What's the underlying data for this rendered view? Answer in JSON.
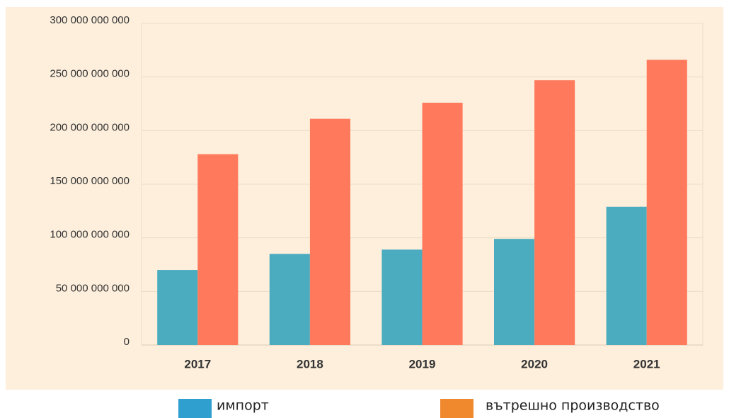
{
  "chart_data": {
    "type": "bar",
    "categories": [
      "2017",
      "2018",
      "2019",
      "2020",
      "2021"
    ],
    "series": [
      {
        "name": "импорт",
        "color": "#4bacc0",
        "legend_color": "#2f9fcf",
        "values": [
          70000000000,
          85000000000,
          89000000000,
          99000000000,
          129000000000
        ]
      },
      {
        "name": "вътрешно производство",
        "color": "#ff7a5c",
        "legend_color": "#f0882e",
        "values": [
          178000000000,
          211000000000,
          226000000000,
          247000000000,
          266000000000
        ]
      }
    ],
    "ylim": [
      0,
      300000000000
    ],
    "yticks": [
      0,
      {
        "value": 50000000000,
        "label": "50 000 000 000"
      },
      {
        "value": 100000000000,
        "label": "100 000 000 000"
      },
      {
        "value": 150000000000,
        "label": "150 000 000 000"
      },
      {
        "value": 200000000000,
        "label": "200 000 000 000"
      },
      {
        "value": 250000000000,
        "label": "250 000 000 000"
      },
      {
        "value": 300000000000,
        "label": "300 000 000 000"
      }
    ],
    "grid": true
  }
}
